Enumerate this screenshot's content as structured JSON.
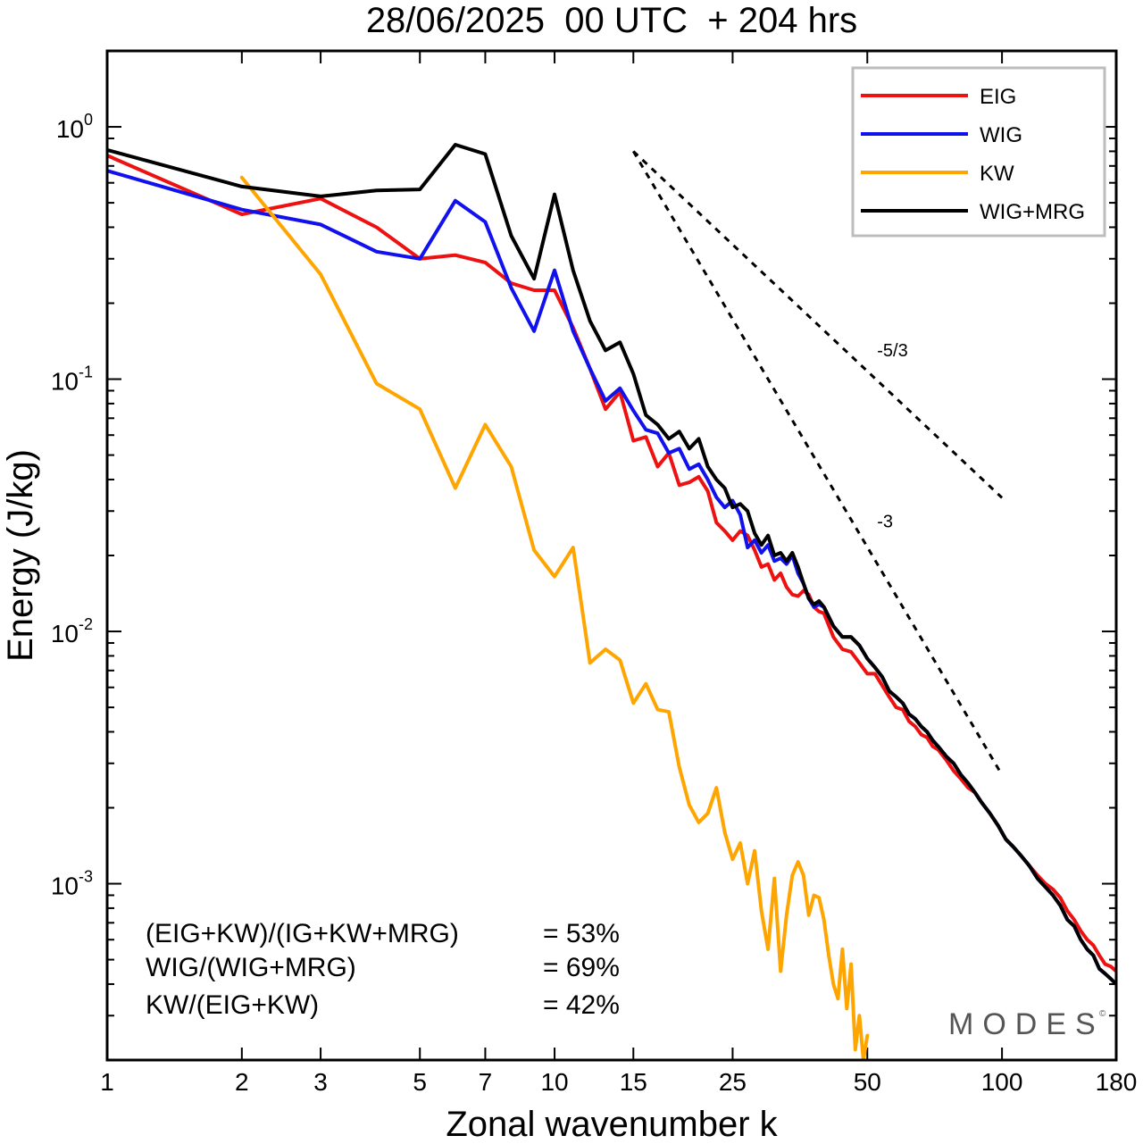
{
  "chart_data": {
    "type": "line",
    "title": "28/06/2025  00 UTC  + 204 hrs",
    "xlabel": "Zonal wavenumber k",
    "ylabel": "Energy (J/kg)",
    "xscale": "log",
    "yscale": "log",
    "xlim": [
      1,
      180
    ],
    "ylim": [
      0.0002,
      2.0
    ],
    "x_ticks": [
      1,
      2,
      3,
      5,
      7,
      10,
      15,
      25,
      50,
      100,
      180
    ],
    "x_tick_labels": [
      "1",
      "2",
      "3",
      "5",
      "7",
      "10",
      "15",
      "25",
      "50",
      "100",
      "180"
    ],
    "y_ticks": [
      {
        "value": 1,
        "base": "10",
        "exp": "0"
      },
      {
        "value": 0.1,
        "base": "10",
        "exp": "-1"
      },
      {
        "value": 0.01,
        "base": "10",
        "exp": "-2"
      },
      {
        "value": 0.001,
        "base": "10",
        "exp": "-3"
      }
    ],
    "grid": false,
    "legend_position": "top-right",
    "series": [
      {
        "name": "EIG",
        "color": "#ee1111",
        "points": [
          [
            1,
            0.77
          ],
          [
            2,
            0.45
          ],
          [
            3,
            0.52
          ],
          [
            4,
            0.4
          ],
          [
            5,
            0.3
          ],
          [
            6,
            0.31
          ],
          [
            7,
            0.29
          ],
          [
            8,
            0.24
          ],
          [
            9,
            0.225
          ],
          [
            10,
            0.225
          ],
          [
            11,
            0.16
          ],
          [
            12,
            0.11
          ],
          [
            13,
            0.076
          ],
          [
            14,
            0.089
          ],
          [
            15,
            0.057
          ],
          [
            16,
            0.059
          ],
          [
            17,
            0.045
          ],
          [
            18,
            0.051
          ],
          [
            19,
            0.038
          ],
          [
            20,
            0.039
          ],
          [
            21,
            0.041
          ],
          [
            22,
            0.036
          ],
          [
            23,
            0.027
          ],
          [
            24,
            0.025
          ],
          [
            25,
            0.023
          ],
          [
            26,
            0.025
          ],
          [
            27,
            0.024
          ],
          [
            28,
            0.021
          ],
          [
            29,
            0.018
          ],
          [
            30,
            0.0185
          ],
          [
            31,
            0.016
          ],
          [
            32,
            0.017
          ],
          [
            33,
            0.015
          ],
          [
            34,
            0.014
          ],
          [
            35,
            0.0138
          ],
          [
            36,
            0.0145
          ],
          [
            37,
            0.014
          ],
          [
            38,
            0.0125
          ],
          [
            39,
            0.012
          ],
          [
            40,
            0.0118
          ],
          [
            42,
            0.0095
          ],
          [
            44,
            0.0085
          ],
          [
            46,
            0.0083
          ],
          [
            48,
            0.0075
          ],
          [
            50,
            0.0068
          ],
          [
            52,
            0.0068
          ],
          [
            54,
            0.0061
          ],
          [
            56,
            0.0055
          ],
          [
            58,
            0.005
          ],
          [
            60,
            0.0049
          ],
          [
            62,
            0.0044
          ],
          [
            64,
            0.0042
          ],
          [
            66,
            0.0039
          ],
          [
            68,
            0.0038
          ],
          [
            70,
            0.0035
          ],
          [
            72,
            0.0034
          ],
          [
            75,
            0.0031
          ],
          [
            78,
            0.0028
          ],
          [
            81,
            0.0026
          ],
          [
            84,
            0.0024
          ],
          [
            87,
            0.0023
          ],
          [
            90,
            0.0021
          ],
          [
            94,
            0.0019
          ],
          [
            98,
            0.0017
          ],
          [
            102,
            0.0015
          ],
          [
            106,
            0.0014
          ],
          [
            110,
            0.0013
          ],
          [
            115,
            0.00118
          ],
          [
            120,
            0.00108
          ],
          [
            125,
            0.001
          ],
          [
            130,
            0.00095
          ],
          [
            135,
            0.00088
          ],
          [
            140,
            0.00078
          ],
          [
            145,
            0.00072
          ],
          [
            150,
            0.00065
          ],
          [
            155,
            0.0006
          ],
          [
            160,
            0.00057
          ],
          [
            165,
            0.00052
          ],
          [
            170,
            0.00048
          ],
          [
            175,
            0.00047
          ],
          [
            180,
            0.00045
          ]
        ]
      },
      {
        "name": "WIG",
        "color": "#1111ee",
        "points": [
          [
            1,
            0.67
          ],
          [
            2,
            0.47
          ],
          [
            3,
            0.41
          ],
          [
            4,
            0.32
          ],
          [
            5,
            0.3
          ],
          [
            6,
            0.51
          ],
          [
            7,
            0.42
          ],
          [
            8,
            0.23
          ],
          [
            9,
            0.155
          ],
          [
            10,
            0.27
          ],
          [
            11,
            0.155
          ],
          [
            12,
            0.11
          ],
          [
            13,
            0.082
          ],
          [
            14,
            0.092
          ],
          [
            15,
            0.075
          ],
          [
            16,
            0.063
          ],
          [
            17,
            0.061
          ],
          [
            18,
            0.051
          ],
          [
            19,
            0.053
          ],
          [
            20,
            0.044
          ],
          [
            21,
            0.046
          ],
          [
            22,
            0.04
          ],
          [
            23,
            0.034
          ],
          [
            24,
            0.031
          ],
          [
            25,
            0.033
          ],
          [
            26,
            0.029
          ],
          [
            27,
            0.0215
          ],
          [
            28,
            0.023
          ],
          [
            29,
            0.0205
          ],
          [
            30,
            0.022
          ],
          [
            31,
            0.019
          ],
          [
            32,
            0.0195
          ],
          [
            33,
            0.0185
          ],
          [
            34,
            0.02
          ],
          [
            35,
            0.017
          ],
          [
            36,
            0.0155
          ],
          [
            37,
            0.0135
          ],
          [
            38,
            0.0125
          ],
          [
            39,
            0.0128
          ],
          [
            40,
            0.0125
          ],
          [
            42,
            0.0105
          ],
          [
            44,
            0.0095
          ],
          [
            46,
            0.0095
          ],
          [
            48,
            0.0088
          ],
          [
            50,
            0.0078
          ],
          [
            52,
            0.0072
          ],
          [
            54,
            0.0066
          ],
          [
            56,
            0.0058
          ],
          [
            58,
            0.0055
          ],
          [
            60,
            0.0052
          ],
          [
            62,
            0.0047
          ],
          [
            64,
            0.0045
          ],
          [
            66,
            0.0042
          ],
          [
            68,
            0.004
          ],
          [
            70,
            0.0037
          ],
          [
            72,
            0.0035
          ],
          [
            75,
            0.0032
          ],
          [
            78,
            0.003
          ],
          [
            81,
            0.0027
          ],
          [
            84,
            0.0025
          ],
          [
            87,
            0.0023
          ],
          [
            90,
            0.0021
          ],
          [
            94,
            0.0019
          ],
          [
            98,
            0.0017
          ],
          [
            102,
            0.0015
          ],
          [
            106,
            0.0014
          ],
          [
            110,
            0.0013
          ],
          [
            115,
            0.00118
          ],
          [
            120,
            0.00105
          ],
          [
            125,
            0.00097
          ],
          [
            130,
            0.0009
          ],
          [
            135,
            0.00082
          ],
          [
            140,
            0.00072
          ],
          [
            145,
            0.00068
          ],
          [
            150,
            0.0006
          ],
          [
            155,
            0.00055
          ],
          [
            160,
            0.00052
          ],
          [
            165,
            0.00046
          ],
          [
            170,
            0.00044
          ],
          [
            175,
            0.00042
          ],
          [
            180,
            0.0004
          ]
        ]
      },
      {
        "name": "KW",
        "color": "#ffa500",
        "points": [
          [
            2,
            0.63
          ],
          [
            3,
            0.26
          ],
          [
            4,
            0.096
          ],
          [
            5,
            0.076
          ],
          [
            6,
            0.037
          ],
          [
            7,
            0.066
          ],
          [
            8,
            0.045
          ],
          [
            9,
            0.021
          ],
          [
            10,
            0.0165
          ],
          [
            11,
            0.0215
          ],
          [
            12,
            0.0075
          ],
          [
            13,
            0.0085
          ],
          [
            14,
            0.0077
          ],
          [
            15,
            0.0052
          ],
          [
            16,
            0.0062
          ],
          [
            17,
            0.0049
          ],
          [
            18,
            0.0048
          ],
          [
            19,
            0.0029
          ],
          [
            20,
            0.00205
          ],
          [
            21,
            0.00175
          ],
          [
            22,
            0.0019
          ],
          [
            23,
            0.0024
          ],
          [
            24,
            0.0016
          ],
          [
            25,
            0.00125
          ],
          [
            26,
            0.00145
          ],
          [
            27,
            0.001
          ],
          [
            28,
            0.00135
          ],
          [
            29,
            0.00078
          ],
          [
            30,
            0.00055
          ],
          [
            31,
            0.00105
          ],
          [
            32,
            0.00045
          ],
          [
            33,
            0.00075
          ],
          [
            34,
            0.00108
          ],
          [
            35,
            0.00122
          ],
          [
            36,
            0.00108
          ],
          [
            37,
            0.00075
          ],
          [
            38,
            0.0009
          ],
          [
            39,
            0.00088
          ],
          [
            40,
            0.00072
          ],
          [
            41,
            0.00052
          ],
          [
            42,
            0.0004
          ],
          [
            43,
            0.00035
          ],
          [
            44,
            0.00055
          ],
          [
            45,
            0.00032
          ],
          [
            46,
            0.00048
          ],
          [
            47,
            0.00022
          ],
          [
            48,
            0.0003
          ],
          [
            49,
            0.0002
          ],
          [
            50,
            0.00025
          ]
        ]
      },
      {
        "name": "WIG+MRG",
        "color": "#000000",
        "points": [
          [
            1,
            0.81
          ],
          [
            2,
            0.58
          ],
          [
            3,
            0.53
          ],
          [
            4,
            0.56
          ],
          [
            5,
            0.565
          ],
          [
            6,
            0.85
          ],
          [
            7,
            0.78
          ],
          [
            8,
            0.37
          ],
          [
            9,
            0.25
          ],
          [
            10,
            0.54
          ],
          [
            11,
            0.27
          ],
          [
            12,
            0.17
          ],
          [
            13,
            0.13
          ],
          [
            14,
            0.14
          ],
          [
            15,
            0.105
          ],
          [
            16,
            0.072
          ],
          [
            17,
            0.066
          ],
          [
            18,
            0.058
          ],
          [
            19,
            0.062
          ],
          [
            20,
            0.053
          ],
          [
            21,
            0.058
          ],
          [
            22,
            0.045
          ],
          [
            23,
            0.04
          ],
          [
            24,
            0.037
          ],
          [
            25,
            0.031
          ],
          [
            26,
            0.032
          ],
          [
            27,
            0.03
          ],
          [
            28,
            0.0245
          ],
          [
            29,
            0.022
          ],
          [
            30,
            0.024
          ],
          [
            31,
            0.02
          ],
          [
            32,
            0.0205
          ],
          [
            33,
            0.019
          ],
          [
            34,
            0.0205
          ],
          [
            35,
            0.018
          ],
          [
            36,
            0.0155
          ],
          [
            37,
            0.0135
          ],
          [
            38,
            0.0128
          ],
          [
            39,
            0.0132
          ],
          [
            40,
            0.0125
          ],
          [
            42,
            0.0105
          ],
          [
            44,
            0.0095
          ],
          [
            46,
            0.0095
          ],
          [
            48,
            0.0088
          ],
          [
            50,
            0.0078
          ],
          [
            52,
            0.0072
          ],
          [
            54,
            0.0066
          ],
          [
            56,
            0.0058
          ],
          [
            58,
            0.0055
          ],
          [
            60,
            0.0052
          ],
          [
            62,
            0.0047
          ],
          [
            64,
            0.0045
          ],
          [
            66,
            0.0042
          ],
          [
            68,
            0.004
          ],
          [
            70,
            0.0037
          ],
          [
            72,
            0.0035
          ],
          [
            75,
            0.0032
          ],
          [
            78,
            0.003
          ],
          [
            81,
            0.0027
          ],
          [
            84,
            0.0025
          ],
          [
            87,
            0.0023
          ],
          [
            90,
            0.0021
          ],
          [
            94,
            0.0019
          ],
          [
            98,
            0.0017
          ],
          [
            102,
            0.0015
          ],
          [
            106,
            0.0014
          ],
          [
            110,
            0.0013
          ],
          [
            115,
            0.00118
          ],
          [
            120,
            0.00105
          ],
          [
            125,
            0.00097
          ],
          [
            130,
            0.0009
          ],
          [
            135,
            0.00082
          ],
          [
            140,
            0.00072
          ],
          [
            145,
            0.00068
          ],
          [
            150,
            0.0006
          ],
          [
            155,
            0.00055
          ],
          [
            160,
            0.00052
          ],
          [
            165,
            0.00046
          ],
          [
            170,
            0.00044
          ],
          [
            175,
            0.00042
          ],
          [
            180,
            0.0004
          ]
        ]
      }
    ],
    "reference_lines": [
      {
        "label": "-5/3",
        "slope": -1.6667,
        "x_start": 15,
        "y_start": 0.8,
        "x_end": 100,
        "style": "dashed"
      },
      {
        "label": "-3",
        "slope": -3,
        "x_start": 15,
        "y_start": 0.8,
        "x_end": 100,
        "style": "dashed"
      }
    ],
    "annotations": [
      {
        "label": "(EIG+KW)/(IG+KW+MRG)",
        "value": "= 53%"
      },
      {
        "label": "WIG/(WIG+MRG)",
        "value": "= 69%"
      },
      {
        "label": "KW/(EIG+KW)",
        "value": "= 42%"
      }
    ],
    "watermark": "MODES",
    "watermark_mark": "©"
  }
}
